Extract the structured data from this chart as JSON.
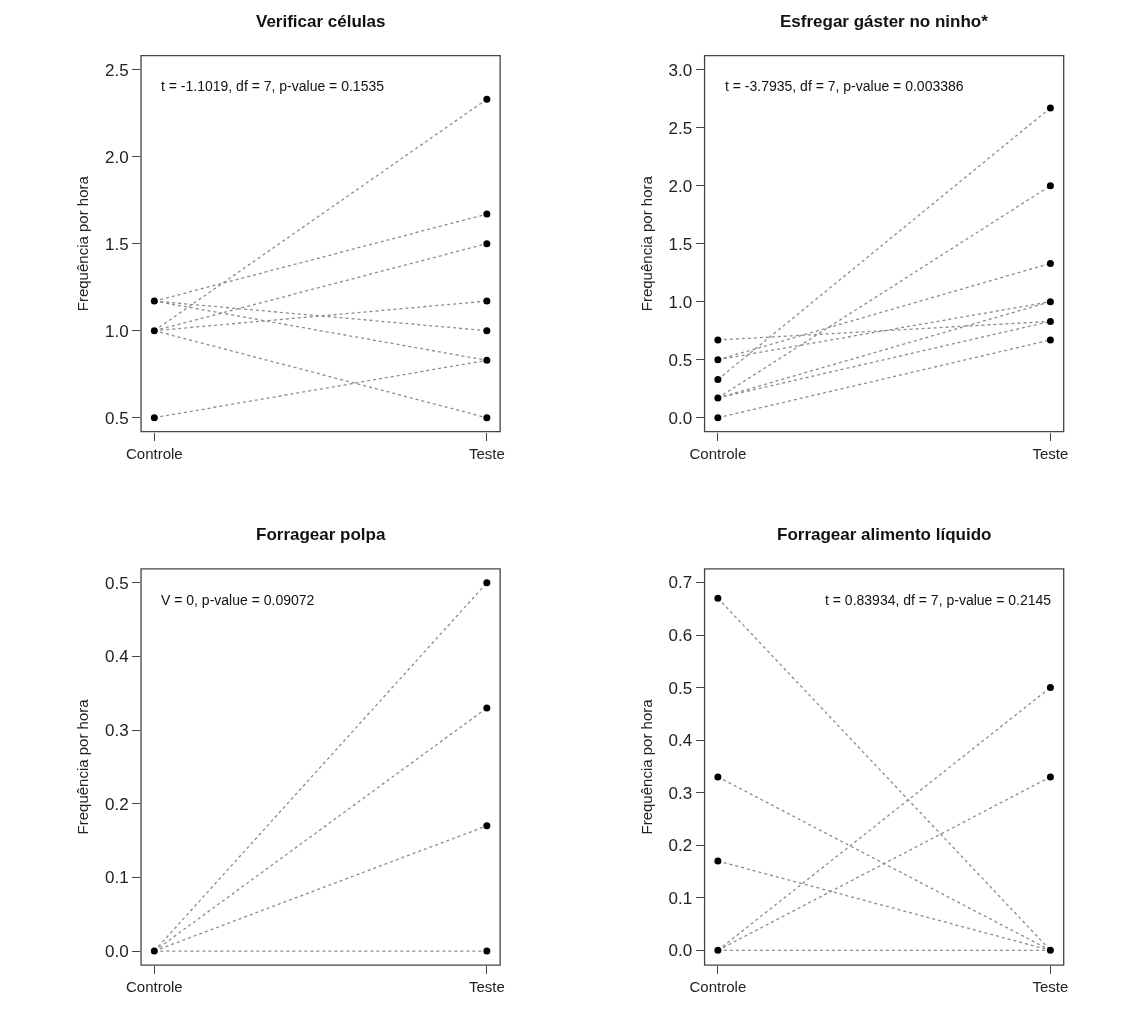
{
  "chart_data": [
    {
      "type": "line",
      "title": "Verificar células",
      "ylabel": "Frequência por hora",
      "categories": [
        "Controle",
        "Teste"
      ],
      "ylim": [
        0.42,
        2.58
      ],
      "yticks": [
        0.5,
        {
          "value": 1,
          "label": "1.0"
        },
        1.5,
        {
          "value": 2,
          "label": "2.0"
        },
        2.5
      ],
      "line_style": "dotted",
      "marker": "none",
      "annotations": [
        "t = -1.1019, df = 7, p-value = 0.1535"
      ],
      "series": [
        {
          "color": "#8c8c8c",
          "values": [
            1.0,
            2.33
          ]
        },
        {
          "color": "#8c8c8c",
          "values": [
            1.17,
            1.67
          ]
        },
        {
          "color": "#8c8c8c",
          "values": [
            1.0,
            1.5
          ]
        },
        {
          "color": "#8c8c8c",
          "values": [
            1.0,
            1.17
          ]
        },
        {
          "color": "#8c8c8c",
          "values": [
            1.17,
            1.0
          ]
        },
        {
          "color": "#8c8c8c",
          "values": [
            1.17,
            0.83
          ]
        },
        {
          "color": "#8c8c8c",
          "values": [
            1.0,
            0.5
          ]
        },
        {
          "color": "#8c8c8c",
          "values": [
            0.5,
            0.83
          ]
        },
        {
          "type": "scatter",
          "marker": "circle",
          "color": "#000000",
          "x": [
            "Controle",
            "Controle",
            "Controle",
            "Teste",
            "Teste",
            "Teste",
            "Teste",
            "Teste",
            "Teste",
            "Teste"
          ],
          "values": [
            1.17,
            1.0,
            0.5,
            2.33,
            1.67,
            1.5,
            1.17,
            1.0,
            0.83,
            0.5
          ]
        }
      ]
    },
    {
      "type": "line",
      "title": "Esfregar gáster no ninho*",
      "ylabel": "Frequência por hora",
      "categories": [
        "Controle",
        "Teste"
      ],
      "ylim": [
        -0.12,
        3.12
      ],
      "yticks": [
        {
          "value": 0,
          "label": "0.0"
        },
        0.5,
        {
          "value": 1,
          "label": "1.0"
        },
        1.5,
        {
          "value": 2,
          "label": "2.0"
        },
        2.5,
        {
          "value": 3,
          "label": "3.0"
        }
      ],
      "line_style": "dotted",
      "marker": "none",
      "annotations": [
        "t = -3.7935, df = 7, p-value = 0.003386"
      ],
      "series": [
        {
          "color": "#8c8c8c",
          "values": [
            0.33,
            2.67
          ]
        },
        {
          "color": "#8c8c8c",
          "values": [
            0.17,
            2.0
          ]
        },
        {
          "color": "#8c8c8c",
          "values": [
            0.5,
            1.33
          ]
        },
        {
          "color": "#8c8c8c",
          "values": [
            0.67,
            0.83
          ]
        },
        {
          "color": "#8c8c8c",
          "values": [
            0.5,
            1.0
          ]
        },
        {
          "color": "#8c8c8c",
          "values": [
            0.17,
            1.0
          ]
        },
        {
          "color": "#8c8c8c",
          "values": [
            0.17,
            0.83
          ]
        },
        {
          "color": "#8c8c8c",
          "values": [
            0.0,
            0.67
          ]
        },
        {
          "type": "scatter",
          "marker": "circle",
          "color": "#000000",
          "x": [
            "Controle",
            "Controle",
            "Controle",
            "Controle",
            "Controle",
            "Teste",
            "Teste",
            "Teste",
            "Teste",
            "Teste",
            "Teste"
          ],
          "values": [
            0.67,
            0.5,
            0.33,
            0.17,
            0.0,
            2.67,
            2.0,
            1.33,
            1.0,
            0.83,
            0.67
          ]
        }
      ]
    },
    {
      "type": "line",
      "title": "Forragear polpa",
      "ylabel": "Frequência por hora",
      "categories": [
        "Controle",
        "Teste"
      ],
      "ylim": [
        -0.019,
        0.519
      ],
      "yticks": [
        {
          "value": 0,
          "label": "0.0"
        },
        0.1,
        0.2,
        0.3,
        0.4,
        0.5
      ],
      "line_style": "dotted",
      "marker": "none",
      "annotations": [
        "V = 0, p-value = 0.09072"
      ],
      "series": [
        {
          "color": "#8c8c8c",
          "values": [
            0.0,
            0.5
          ]
        },
        {
          "color": "#8c8c8c",
          "values": [
            0.0,
            0.33
          ]
        },
        {
          "color": "#8c8c8c",
          "values": [
            0.0,
            0.17
          ]
        },
        {
          "color": "#8c8c8c",
          "values": [
            0.0,
            0.0
          ]
        },
        {
          "type": "scatter",
          "marker": "circle",
          "color": "#000000",
          "x": [
            "Controle",
            "Teste",
            "Teste",
            "Teste",
            "Teste"
          ],
          "values": [
            0.0,
            0.5,
            0.33,
            0.17,
            0.0
          ]
        }
      ]
    },
    {
      "type": "line",
      "title": "Forragear alimento líquido",
      "ylabel": "Frequência por hora",
      "categories": [
        "Controle",
        "Teste"
      ],
      "ylim": [
        -0.028,
        0.726
      ],
      "yticks": [
        {
          "value": 0,
          "label": "0.0"
        },
        0.1,
        0.2,
        0.3,
        0.4,
        0.5,
        0.6,
        0.7
      ],
      "line_style": "dotted",
      "marker": "none",
      "annotations": [
        "t = 0.83934, df = 7, p-value = 0.2145"
      ],
      "series": [
        {
          "color": "#8c8c8c",
          "values": [
            0.67,
            0.0
          ]
        },
        {
          "color": "#8c8c8c",
          "values": [
            0.33,
            0.0
          ]
        },
        {
          "color": "#8c8c8c",
          "values": [
            0.17,
            0.0
          ]
        },
        {
          "color": "#8c8c8c",
          "values": [
            0.0,
            0.5
          ]
        },
        {
          "color": "#8c8c8c",
          "values": [
            0.0,
            0.33
          ]
        },
        {
          "color": "#8c8c8c",
          "values": [
            0.0,
            0.0
          ]
        },
        {
          "type": "scatter",
          "marker": "circle",
          "color": "#000000",
          "x": [
            "Controle",
            "Controle",
            "Controle",
            "Controle",
            "Teste",
            "Teste",
            "Teste"
          ],
          "values": [
            0.67,
            0.33,
            0.17,
            0.0,
            0.5,
            0.33,
            0.0
          ]
        }
      ]
    }
  ]
}
